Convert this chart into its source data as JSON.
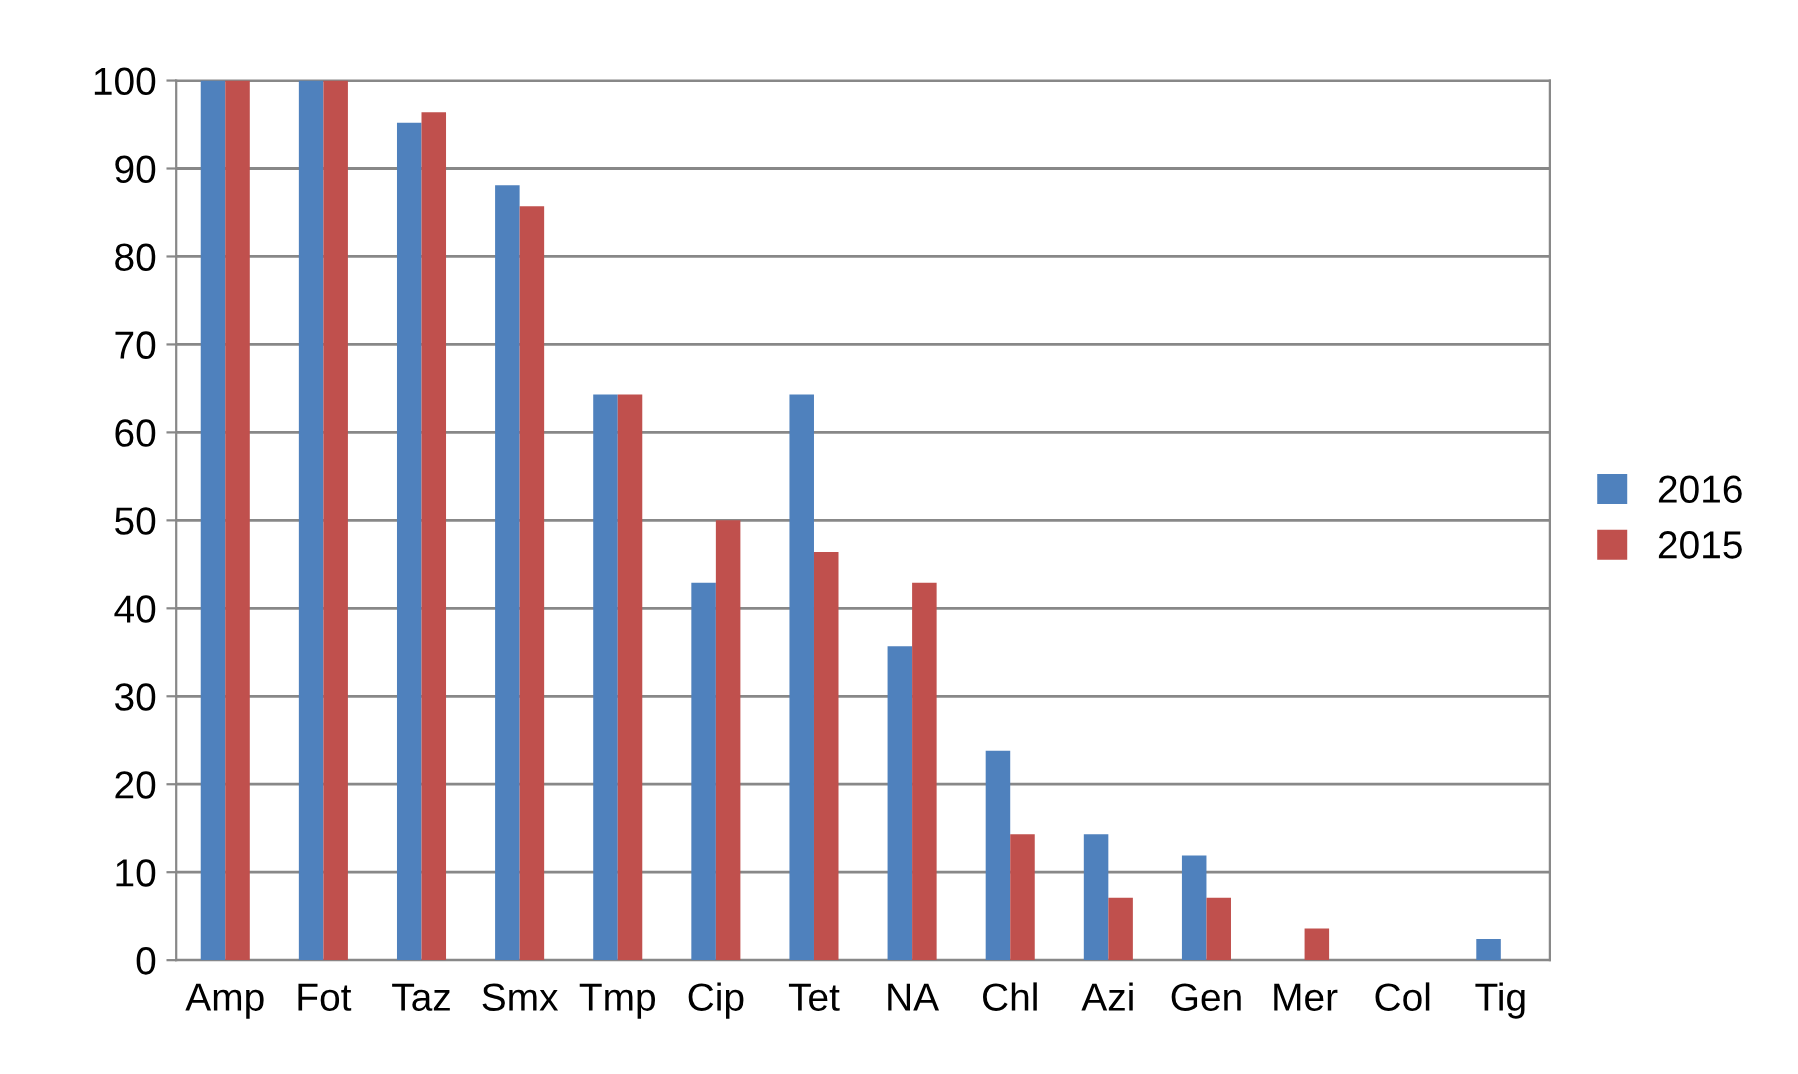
{
  "chart_data": {
    "type": "bar",
    "categories": [
      "Amp",
      "Fot",
      "Taz",
      "Smx",
      "Tmp",
      "Cip",
      "Tet",
      "NA",
      "Chl",
      "Azi",
      "Gen",
      "Mer",
      "Col",
      "Tig"
    ],
    "series": [
      {
        "name": "2016",
        "color": "#4f81bd",
        "values": [
          100,
          100,
          95.2,
          88.1,
          64.3,
          42.9,
          64.3,
          35.7,
          23.8,
          14.3,
          11.9,
          0,
          0,
          2.4
        ]
      },
      {
        "name": "2015",
        "color": "#c0504d",
        "values": [
          100,
          100,
          96.4,
          85.7,
          64.3,
          50,
          46.4,
          42.9,
          14.3,
          7.1,
          7.1,
          3.6,
          0,
          0
        ]
      }
    ],
    "ylim": [
      0,
      100
    ],
    "yticks": [
      0,
      10,
      20,
      30,
      40,
      50,
      60,
      70,
      80,
      90,
      100
    ],
    "grid": "y",
    "legend": "right"
  }
}
